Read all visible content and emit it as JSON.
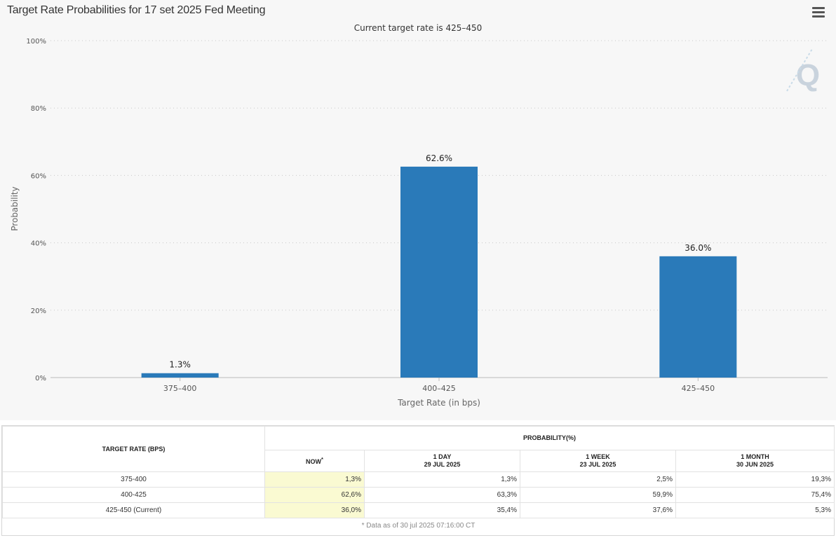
{
  "title": "Target Rate Probabilities for 17 set 2025 Fed Meeting",
  "subtitle": "Current target rate is 425–450",
  "watermark": "Q",
  "chart_data": {
    "type": "bar",
    "categories": [
      "375–400",
      "400–425",
      "425–450"
    ],
    "values": [
      1.3,
      62.6,
      36.0
    ],
    "data_labels": [
      "1.3%",
      "62.6%",
      "36.0%"
    ],
    "xlabel": "Target Rate (in bps)",
    "ylabel": "Probability",
    "ylim": [
      0,
      100
    ],
    "yticks": [
      "0%",
      "20%",
      "40%",
      "60%",
      "80%",
      "100%"
    ],
    "grid": true,
    "bar_color": "#2a7ab9"
  },
  "table": {
    "header_rate": "TARGET RATE (BPS)",
    "header_prob": "PROBABILITY(%)",
    "columns": [
      {
        "label": "NOW",
        "sup": "*",
        "date": ""
      },
      {
        "label": "1 DAY",
        "date": "29 JUL 2025"
      },
      {
        "label": "1 WEEK",
        "date": "23 JUL 2025"
      },
      {
        "label": "1 MONTH",
        "date": "30 JUN 2025"
      }
    ],
    "rows": [
      {
        "rate": "375-400",
        "values": [
          "1,3%",
          "1,3%",
          "2,5%",
          "19,3%"
        ]
      },
      {
        "rate": "400-425",
        "values": [
          "62,6%",
          "63,3%",
          "59,9%",
          "75,4%"
        ]
      },
      {
        "rate": "425-450 (Current)",
        "values": [
          "36,0%",
          "35,4%",
          "37,6%",
          "5,3%"
        ]
      }
    ],
    "note": "* Data as of 30 jul 2025 07:16:00 CT",
    "highlight_color": "#fafad2"
  }
}
